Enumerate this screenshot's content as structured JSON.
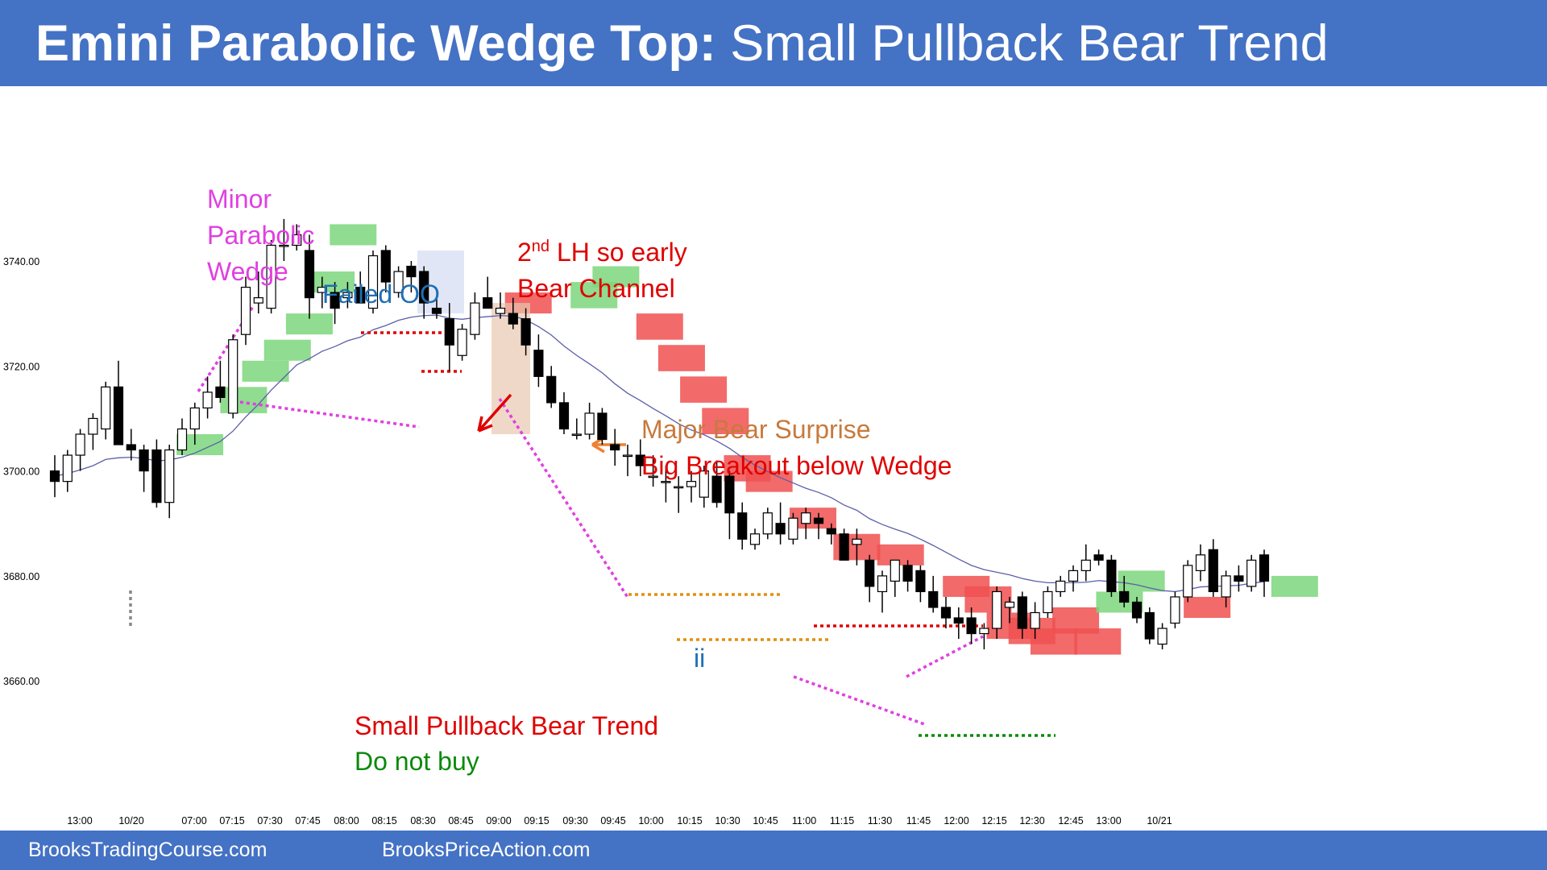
{
  "title": {
    "bold": "Emini Parabolic Wedge Top:",
    "rest": " Small Pullback Bear Trend"
  },
  "footer": {
    "left": "BrooksTradingCourse.com",
    "right": "BrooksPriceAction.com"
  },
  "colors": {
    "banner": "#4472c4",
    "bull_highlight": "#7dd67d",
    "bear_highlight": "#f05050",
    "ema": "#5b5fa8",
    "magenta": "#e040e0",
    "red": "#e00000",
    "blue_text": "#1f6fb5",
    "orange": "#c77a3c",
    "green": "#0a8a0a"
  },
  "chart_data": {
    "type": "candlestick",
    "ylim": [
      3655,
      3790
    ],
    "yticks": [
      "3740.00",
      "3720.00",
      "3700.00",
      "3680.00",
      "3660.00"
    ],
    "xticks": [
      "13:00",
      "10/20",
      "07:00",
      "07:15",
      "07:30",
      "07:45",
      "08:00",
      "08:15",
      "08:30",
      "08:45",
      "09:00",
      "09:15",
      "09:30",
      "09:45",
      "10:00",
      "10:15",
      "10:30",
      "10:45",
      "11:00",
      "11:15",
      "11:30",
      "11:45",
      "12:00",
      "12:15",
      "12:30",
      "12:45",
      "13:00",
      "10/21"
    ],
    "bars": [
      [
        3700,
        3703,
        3695,
        3698
      ],
      [
        3698,
        3704,
        3696,
        3703
      ],
      [
        3703,
        3708,
        3700,
        3707
      ],
      [
        3707,
        3711,
        3704,
        3710
      ],
      [
        3708,
        3717,
        3706,
        3716
      ],
      [
        3716,
        3721,
        3710,
        3705
      ],
      [
        3705,
        3708,
        3702,
        3704
      ],
      [
        3704,
        3705,
        3696,
        3700
      ],
      [
        3704,
        3706,
        3693,
        3694
      ],
      [
        3694,
        3705,
        3691,
        3704
      ],
      [
        3704,
        3710,
        3703,
        3708
      ],
      [
        3708,
        3713,
        3705,
        3712
      ],
      [
        3712,
        3718,
        3710,
        3715
      ],
      [
        3716,
        3721,
        3713,
        3714
      ],
      [
        3711,
        3726,
        3710,
        3725
      ],
      [
        3726,
        3737,
        3724,
        3735
      ],
      [
        3732,
        3738,
        3730,
        3733
      ],
      [
        3731,
        3744,
        3730,
        3743
      ],
      [
        3743,
        3748,
        3740,
        3743
      ],
      [
        3743,
        3747,
        3742,
        3745
      ],
      [
        3742,
        3745,
        3729,
        3733
      ],
      [
        3734,
        3737,
        3731,
        3735
      ],
      [
        3734,
        3736,
        3728,
        3731
      ],
      [
        3733,
        3736,
        3731,
        3734
      ],
      [
        3735,
        3738,
        3732,
        3732
      ],
      [
        3731,
        3742,
        3730,
        3741
      ],
      [
        3742,
        3743,
        3734,
        3736
      ],
      [
        3734,
        3739,
        3733,
        3738
      ],
      [
        3739,
        3740,
        3734,
        3737
      ],
      [
        3738,
        3739,
        3729,
        3732
      ],
      [
        3731,
        3733,
        3729,
        3730
      ],
      [
        3729,
        3732,
        3719,
        3724
      ],
      [
        3722,
        3728,
        3721,
        3727
      ],
      [
        3726,
        3734,
        3725,
        3732
      ],
      [
        3733,
        3737,
        3731,
        3731
      ],
      [
        3730,
        3734,
        3729,
        3731
      ],
      [
        3730,
        3733,
        3727,
        3728
      ],
      [
        3729,
        3731,
        3722,
        3724
      ],
      [
        3723,
        3726,
        3716,
        3718
      ],
      [
        3718,
        3720,
        3712,
        3713
      ],
      [
        3713,
        3715,
        3707,
        3708
      ],
      [
        3707,
        3710,
        3706,
        3707
      ],
      [
        3707,
        3713,
        3706,
        3711
      ],
      [
        3711,
        3712,
        3705,
        3706
      ],
      [
        3705,
        3708,
        3701,
        3704
      ],
      [
        3703,
        3705,
        3699,
        3703
      ],
      [
        3703,
        3706,
        3699,
        3701
      ],
      [
        3699,
        3703,
        3697,
        3699
      ],
      [
        3698,
        3701,
        3694,
        3698
      ],
      [
        3697,
        3699,
        3692,
        3697
      ],
      [
        3697,
        3700,
        3694,
        3698
      ],
      [
        3695,
        3701,
        3693,
        3700
      ],
      [
        3699,
        3702,
        3693,
        3694
      ],
      [
        3699,
        3700,
        3687,
        3692
      ],
      [
        3692,
        3694,
        3685,
        3687
      ],
      [
        3686,
        3689,
        3685,
        3688
      ],
      [
        3688,
        3693,
        3687,
        3692
      ],
      [
        3690,
        3694,
        3686,
        3688
      ],
      [
        3687,
        3692,
        3686,
        3691
      ],
      [
        3690,
        3693,
        3687,
        3692
      ],
      [
        3691,
        3692,
        3687,
        3690
      ],
      [
        3689,
        3690,
        3686,
        3688
      ],
      [
        3688,
        3689,
        3683,
        3683
      ],
      [
        3686,
        3689,
        3682,
        3687
      ],
      [
        3683,
        3684,
        3675,
        3678
      ],
      [
        3677,
        3681,
        3673,
        3680
      ],
      [
        3679,
        3683,
        3676,
        3683
      ],
      [
        3682,
        3683,
        3677,
        3679
      ],
      [
        3681,
        3682,
        3675,
        3677
      ],
      [
        3677,
        3680,
        3673,
        3674
      ],
      [
        3674,
        3676,
        3670,
        3672
      ],
      [
        3672,
        3674,
        3668,
        3671
      ],
      [
        3672,
        3674,
        3667,
        3669
      ],
      [
        3669,
        3671,
        3666,
        3670
      ],
      [
        3670,
        3678,
        3668,
        3677
      ],
      [
        3674,
        3676,
        3671,
        3675
      ],
      [
        3676,
        3677,
        3668,
        3670
      ],
      [
        3670,
        3675,
        3668,
        3673
      ],
      [
        3673,
        3678,
        3672,
        3677
      ],
      [
        3677,
        3680,
        3676,
        3679
      ],
      [
        3679,
        3682,
        3677,
        3681
      ],
      [
        3681,
        3686,
        3679,
        3683
      ],
      [
        3684,
        3685,
        3682,
        3683
      ],
      [
        3683,
        3684,
        3676,
        3677
      ],
      [
        3677,
        3680,
        3674,
        3675
      ],
      [
        3675,
        3676,
        3671,
        3672
      ],
      [
        3673,
        3674,
        3667,
        3668
      ],
      [
        3667,
        3671,
        3666,
        3670
      ],
      [
        3671,
        3677,
        3670,
        3676
      ],
      [
        3676,
        3683,
        3675,
        3682
      ],
      [
        3681,
        3686,
        3679,
        3684
      ],
      [
        3685,
        3687,
        3676,
        3677
      ],
      [
        3676,
        3681,
        3674,
        3680
      ],
      [
        3680,
        3682,
        3677,
        3679
      ],
      [
        3678,
        3684,
        3677,
        3683
      ],
      [
        3684,
        3685,
        3676,
        3679
      ]
    ],
    "ema": [
      3699,
      3699.5,
      3700.2,
      3701,
      3702.2,
      3702.5,
      3702.6,
      3702.4,
      3701.9,
      3702.1,
      3702.6,
      3703.4,
      3704.5,
      3705.6,
      3707.6,
      3710.3,
      3712.7,
      3715.4,
      3717.8,
      3720.2,
      3721.4,
      3722.8,
      3723.7,
      3724.8,
      3725.5,
      3726.9,
      3727.7,
      3728.7,
      3729.3,
      3729.6,
      3729.7,
      3729.1,
      3728.9,
      3729.2,
      3729.4,
      3729.6,
      3729.5,
      3728.8,
      3727.5,
      3725.9,
      3723.8,
      3722.0,
      3720.4,
      3718.7,
      3716.6,
      3714.8,
      3713.4,
      3711.9,
      3710.5,
      3709.0,
      3707.8,
      3706.9,
      3705.7,
      3704.3,
      3702.6,
      3701.1,
      3699.9,
      3698.7,
      3697.7,
      3696.7,
      3695.9,
      3694.9,
      3693.5,
      3692.5,
      3690.9,
      3689.8,
      3688.9,
      3688.1,
      3687.0,
      3685.8,
      3684.5,
      3683.2,
      3682.0,
      3681.2,
      3680.7,
      3680.2,
      3679.5,
      3679.0,
      3678.7,
      3678.7,
      3678.7,
      3678.8,
      3679.1,
      3678.9,
      3678.7,
      3678.3,
      3677.7,
      3677.2,
      3677.0,
      3677.4,
      3677.9,
      3678.0,
      3678.1,
      3678.2,
      3678.6,
      3678.9
    ]
  },
  "annotations": {
    "minor1": "Minor",
    "minor2": "Parabolic",
    "minor3": "Wedge",
    "failed_oo": "Failed OO",
    "lh_2": "2",
    "lh_sup": "nd",
    "lh_rest": " LH so early",
    "bear_channel": "Bear Channel",
    "major1": "Major Bear Surprise",
    "major2": "Big Breakout below Wedge",
    "ii": "ii",
    "spbt": "Small Pullback Bear Trend",
    "dont_buy": "Do not buy"
  }
}
